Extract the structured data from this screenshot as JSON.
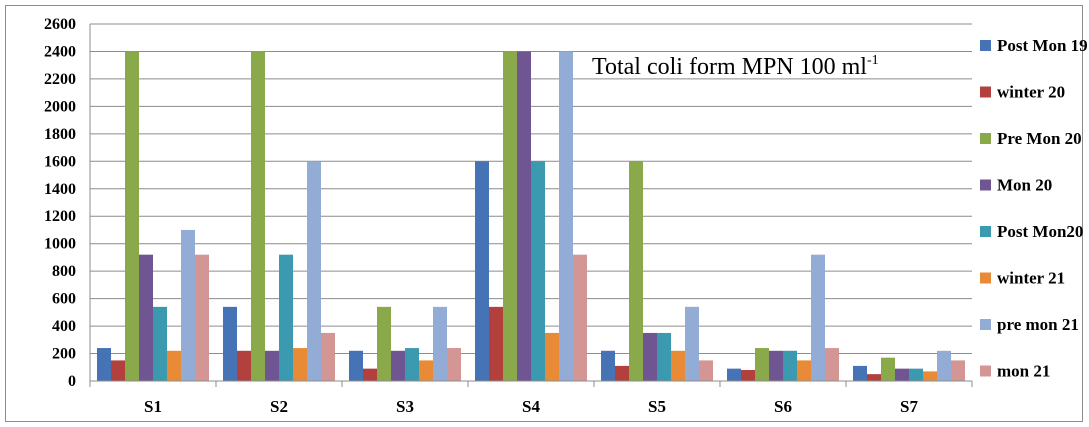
{
  "chart_data": {
    "type": "bar",
    "annotation": {
      "text": "Total coli form MPN 100 ml",
      "superscript": "-1"
    },
    "categories": [
      "S1",
      "S2",
      "S3",
      "S4",
      "S5",
      "S6",
      "S7"
    ],
    "ylim": [
      0,
      2600
    ],
    "yticks": [
      0,
      200,
      400,
      600,
      800,
      1000,
      1200,
      1400,
      1600,
      1800,
      2000,
      2200,
      2400,
      2600
    ],
    "grid": true,
    "legend_position": "right",
    "series": [
      {
        "name": "Post Mon 19",
        "color": "#4573b5",
        "values": [
          240,
          540,
          220,
          1600,
          220,
          90,
          110
        ]
      },
      {
        "name": "winter 20",
        "color": "#b2403c",
        "values": [
          150,
          220,
          90,
          540,
          110,
          80,
          50
        ]
      },
      {
        "name": "Pre Mon 20",
        "color": "#8aa94a",
        "values": [
          2400,
          2400,
          540,
          2400,
          1600,
          240,
          170
        ]
      },
      {
        "name": "Mon 20",
        "color": "#6f5693",
        "values": [
          920,
          220,
          220,
          2400,
          350,
          220,
          90
        ]
      },
      {
        "name": "Post Mon20",
        "color": "#3b9ab0",
        "values": [
          540,
          920,
          240,
          1600,
          350,
          220,
          90
        ]
      },
      {
        "name": "winter 21",
        "color": "#e98b36",
        "values": [
          220,
          240,
          150,
          350,
          220,
          150,
          70
        ]
      },
      {
        "name": "pre mon 21",
        "color": "#93acd6",
        "values": [
          1100,
          1600,
          540,
          2400,
          540,
          920,
          220
        ]
      },
      {
        "name": "mon 21",
        "color": "#d49694",
        "values": [
          920,
          350,
          240,
          920,
          150,
          240,
          150
        ]
      }
    ]
  }
}
